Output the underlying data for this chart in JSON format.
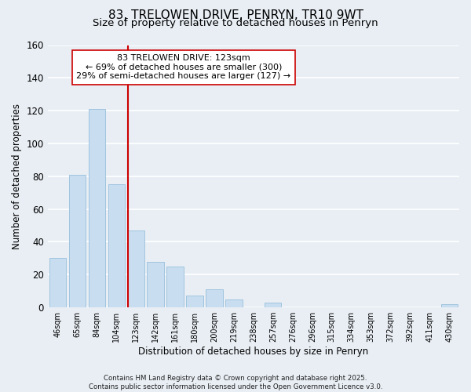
{
  "title": "83, TRELOWEN DRIVE, PENRYN, TR10 9WT",
  "subtitle": "Size of property relative to detached houses in Penryn",
  "xlabel": "Distribution of detached houses by size in Penryn",
  "ylabel": "Number of detached properties",
  "bar_labels": [
    "46sqm",
    "65sqm",
    "84sqm",
    "104sqm",
    "123sqm",
    "142sqm",
    "161sqm",
    "180sqm",
    "200sqm",
    "219sqm",
    "238sqm",
    "257sqm",
    "276sqm",
    "296sqm",
    "315sqm",
    "334sqm",
    "353sqm",
    "372sqm",
    "392sqm",
    "411sqm",
    "430sqm"
  ],
  "bar_values": [
    30,
    81,
    121,
    75,
    47,
    28,
    25,
    7,
    11,
    5,
    0,
    3,
    0,
    0,
    0,
    0,
    0,
    0,
    0,
    0,
    2
  ],
  "bar_color": "#c8ddef",
  "bar_edge_color": "#a0c4df",
  "vline_color": "#cc0000",
  "ylim": [
    0,
    160
  ],
  "yticks": [
    0,
    20,
    40,
    60,
    80,
    100,
    120,
    140,
    160
  ],
  "annotation_title": "83 TRELOWEN DRIVE: 123sqm",
  "annotation_line1": "← 69% of detached houses are smaller (300)",
  "annotation_line2": "29% of semi-detached houses are larger (127) →",
  "annotation_box_color": "#ffffff",
  "annotation_box_edge": "#cc0000",
  "background_color": "#e8eef4",
  "grid_color": "#ffffff",
  "footer_line1": "Contains HM Land Registry data © Crown copyright and database right 2025.",
  "footer_line2": "Contains public sector information licensed under the Open Government Licence v3.0.",
  "title_fontsize": 11,
  "subtitle_fontsize": 9.5,
  "vline_bar_index": 4
}
